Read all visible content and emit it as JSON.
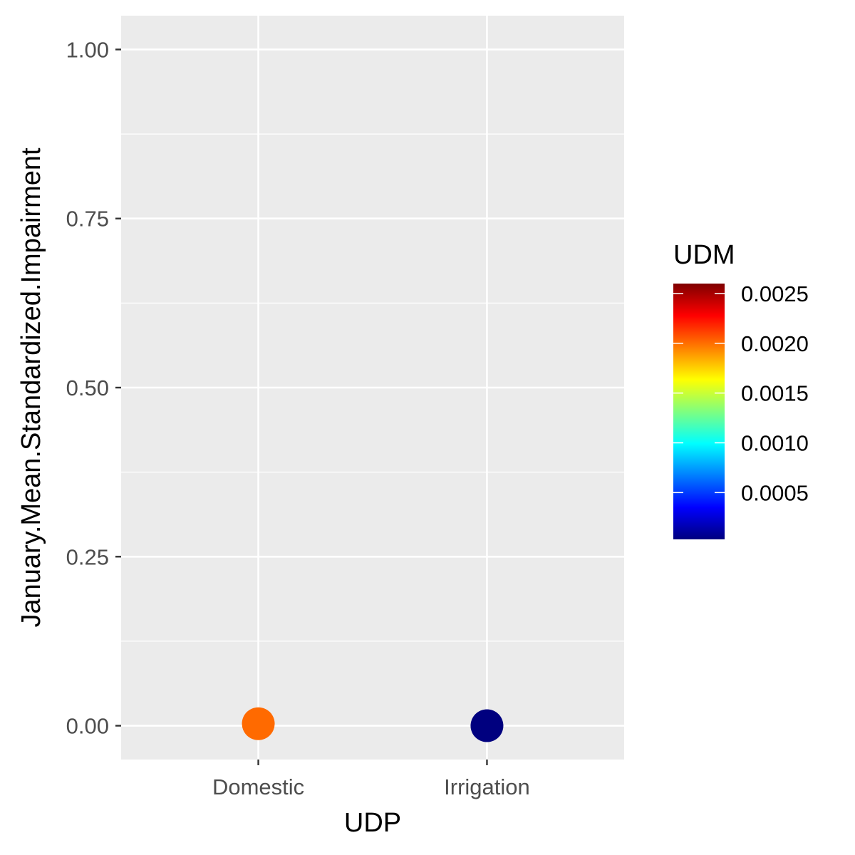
{
  "chart_data": {
    "type": "scatter",
    "xlabel": "UDP",
    "ylabel": "January.Mean.Standardized.Impairment",
    "categories": [
      "Domestic",
      "Irrigation"
    ],
    "ylim": [
      -0.05,
      1.05
    ],
    "y_ticks": [
      0.0,
      0.25,
      0.5,
      0.75,
      1.0
    ],
    "y_tick_labels": [
      "0.00",
      "0.25",
      "0.50",
      "0.75",
      "1.00"
    ],
    "points": [
      {
        "x": "Domestic",
        "y": 0.003,
        "color_value": 0.002,
        "color": "#ff6a00"
      },
      {
        "x": "Irrigation",
        "y": 0.0,
        "color_value": 3e-05,
        "color": "#00007f"
      }
    ],
    "grid": true,
    "panel_background": "#ebebeb",
    "legend": {
      "title": "UDM",
      "placement": "right",
      "range": [
        3e-05,
        0.0026
      ],
      "ticks": [
        0.0005,
        0.001,
        0.0015,
        0.002,
        0.0025
      ],
      "tick_labels": [
        "0.0005",
        "0.0010",
        "0.0015",
        "0.0020",
        "0.0025"
      ],
      "colormap": [
        "#00007f",
        "#0000ff",
        "#007fff",
        "#00ffff",
        "#7fff7f",
        "#ffff00",
        "#ff7f00",
        "#ff0000",
        "#7f0000"
      ]
    }
  }
}
